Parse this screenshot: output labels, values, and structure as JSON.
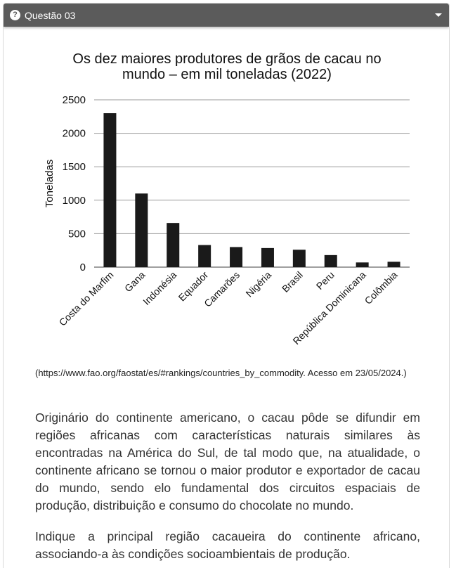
{
  "header": {
    "title": "Questão 03",
    "help_icon": "question-circle-icon",
    "toggle_icon": "caret-down-icon"
  },
  "chart_data": {
    "type": "bar",
    "title_lines": [
      "Os dez maiores produtores de grãos de cacau no",
      "mundo – em mil toneladas (2022)"
    ],
    "categories": [
      "Costa do Marfim",
      "Gana",
      "Indonésia",
      "Equador",
      "Camarões",
      "Nigéria",
      "Brasil",
      "Peru",
      "República Dominicana",
      "Colômbia"
    ],
    "values": [
      2300,
      1100,
      660,
      330,
      300,
      285,
      260,
      180,
      70,
      80
    ],
    "xlabel": "",
    "ylabel": "Toneladas",
    "ylim": [
      0,
      2500
    ],
    "yticks": [
      0,
      500,
      1000,
      1500,
      2000,
      2500
    ],
    "grid": true,
    "bar_color": "#1a1a1a"
  },
  "source": "(https://www.fao.org/faostat/es/#rankings/countries_by_commodity. Acesso em 23/05/2024.)",
  "paragraph1": "Originário do continente americano, o cacau pôde se difundir em regiões africanas com características naturais similares às encontradas na América do Sul, de tal modo que, na atualidade, o continente africano se tornou o maior produtor e exportador de cacau do mundo, sendo elo fundamental dos circuitos espaciais de produção, distribuição e consumo do chocolate no mundo.",
  "paragraph2": "Indique a principal região cacaueira do continente africano, associando-a às condições socioambientais de produção."
}
